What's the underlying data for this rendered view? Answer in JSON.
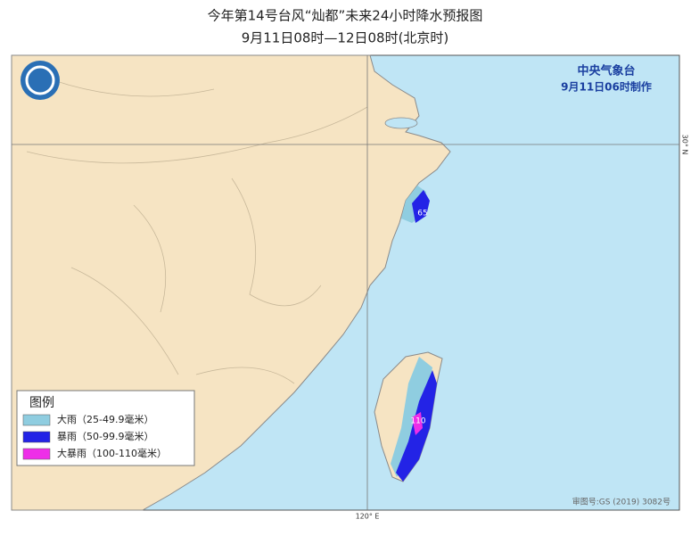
{
  "header": {
    "title": "今年第14号台风“灿都”未来24小时降水预报图",
    "subtitle": "9月11日08时—12日08时(北京时)"
  },
  "agency": {
    "name": "中央气象台",
    "issued": "9月11日06时制作"
  },
  "legend": {
    "title": "图例",
    "items": [
      {
        "label": "大雨（25-49.9毫米）",
        "color": "#8fcde0"
      },
      {
        "label": "暴雨（50-99.9毫米）",
        "color": "#2323e6"
      },
      {
        "label": "大暴雨（100-110毫米）",
        "color": "#ee2ee8"
      }
    ]
  },
  "map_labels": [
    "65",
    "110"
  ],
  "graticule": {
    "lat": "30° N",
    "lon": "120° E"
  },
  "approval": "审图号:GS (2019) 3082号"
}
